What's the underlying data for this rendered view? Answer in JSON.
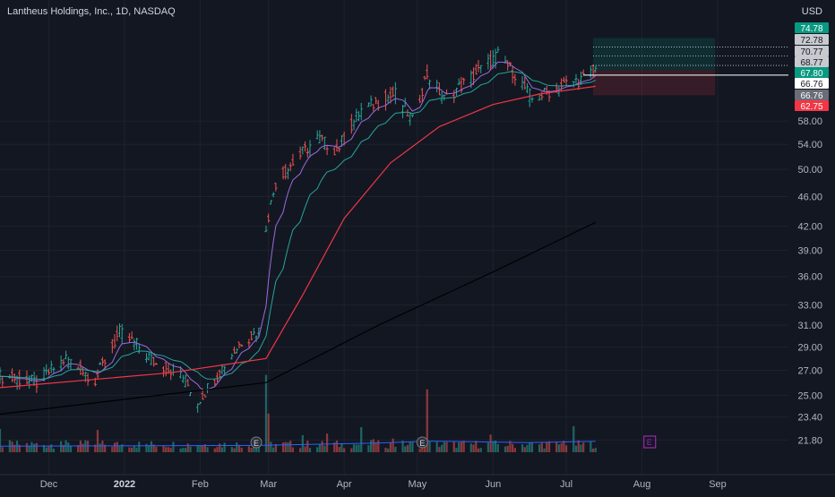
{
  "header": {
    "symbol_title": "Lantheus Holdings, Inc., 1D, NASDAQ",
    "currency": "USD"
  },
  "price_badges": [
    {
      "label": "74.78",
      "bg": "#089981",
      "fg": "#ffffff"
    },
    {
      "label": "72.78",
      "bg": "#c8cad0",
      "fg": "#131722"
    },
    {
      "label": "70.77",
      "bg": "#c8cad0",
      "fg": "#131722"
    },
    {
      "label": "68.77",
      "bg": "#c8cad0",
      "fg": "#131722"
    },
    {
      "label": "67.80",
      "bg": "#089981",
      "fg": "#ffffff"
    },
    {
      "label": "66.76",
      "bg": "#ffffff",
      "fg": "#131722"
    },
    {
      "label": "66.76",
      "bg": "#6a6d78",
      "fg": "#ffffff"
    },
    {
      "label": "62.75",
      "bg": "#f23645",
      "fg": "#ffffff"
    }
  ],
  "earnings_marker": "E",
  "colors": {
    "up": "#26a69a",
    "down": "#ef5350",
    "background": "#131722",
    "grid": "#1e222d",
    "ma_short": "#9c6ade",
    "ma_mid": "#26a69a",
    "ma_50": "#f23645",
    "ma_200": "#000000",
    "vol_ma": "#2962ff",
    "upcoming_earnings": "#9c27b0"
  },
  "chart_data": {
    "type": "candlestick",
    "y_scale": "log",
    "ylim": [
      21.0,
      80.0
    ],
    "y_ticks": [
      {
        "value": 58.0,
        "label": "58.00"
      },
      {
        "value": 54.0,
        "label": "54.00"
      },
      {
        "value": 50.0,
        "label": "50.00"
      },
      {
        "value": 46.0,
        "label": "46.00"
      },
      {
        "value": 42.0,
        "label": "42.00"
      },
      {
        "value": 39.0,
        "label": "39.00"
      },
      {
        "value": 36.0,
        "label": "36.00"
      },
      {
        "value": 33.0,
        "label": "33.00"
      },
      {
        "value": 31.0,
        "label": "31.00"
      },
      {
        "value": 29.0,
        "label": "29.00"
      },
      {
        "value": 27.0,
        "label": "27.00"
      },
      {
        "value": 25.0,
        "label": "25.00"
      },
      {
        "value": 23.4,
        "label": "23.40"
      },
      {
        "value": 21.8,
        "label": "21.80"
      }
    ],
    "x_ticks": [
      {
        "label": "Dec",
        "date": "2021-12-01"
      },
      {
        "label": "2022",
        "date": "2022-01-01"
      },
      {
        "label": "Feb",
        "date": "2022-02-01"
      },
      {
        "label": "Mar",
        "date": "2022-03-01"
      },
      {
        "label": "Apr",
        "date": "2022-04-01"
      },
      {
        "label": "May",
        "date": "2022-05-01"
      },
      {
        "label": "Jun",
        "date": "2022-06-01"
      },
      {
        "label": "Jul",
        "date": "2022-07-01"
      },
      {
        "label": "Aug",
        "date": "2022-08-01"
      },
      {
        "label": "Sep",
        "date": "2022-09-01"
      }
    ],
    "x_range": [
      "2021-11-11",
      "2022-09-30"
    ],
    "price_path": [
      {
        "date": "2021-11-11",
        "close": 26.5
      },
      {
        "date": "2021-11-26",
        "close": 26.0
      },
      {
        "date": "2021-12-08",
        "close": 28.0
      },
      {
        "date": "2021-12-20",
        "close": 26.2
      },
      {
        "date": "2021-12-30",
        "close": 30.3
      },
      {
        "date": "2022-01-06",
        "close": 29.2
      },
      {
        "date": "2022-01-14",
        "close": 27.5
      },
      {
        "date": "2022-01-24",
        "close": 26.8
      },
      {
        "date": "2022-01-31",
        "close": 24.5
      },
      {
        "date": "2022-02-10",
        "close": 27.2
      },
      {
        "date": "2022-02-18",
        "close": 29.5
      },
      {
        "date": "2022-02-25",
        "close": 30.5
      },
      {
        "date": "2022-02-28",
        "close": 42.0
      },
      {
        "date": "2022-03-04",
        "close": 48.0
      },
      {
        "date": "2022-03-11",
        "close": 51.0
      },
      {
        "date": "2022-03-21",
        "close": 55.0
      },
      {
        "date": "2022-03-29",
        "close": 53.0
      },
      {
        "date": "2022-04-08",
        "close": 60.0
      },
      {
        "date": "2022-04-22",
        "close": 63.0
      },
      {
        "date": "2022-04-29",
        "close": 58.0
      },
      {
        "date": "2022-05-05",
        "close": 67.0
      },
      {
        "date": "2022-05-12",
        "close": 62.0
      },
      {
        "date": "2022-05-20",
        "close": 65.0
      },
      {
        "date": "2022-05-27",
        "close": 68.0
      },
      {
        "date": "2022-06-03",
        "close": 71.0
      },
      {
        "date": "2022-06-10",
        "close": 67.0
      },
      {
        "date": "2022-06-17",
        "close": 62.0
      },
      {
        "date": "2022-06-24",
        "close": 63.5
      },
      {
        "date": "2022-07-01",
        "close": 65.0
      },
      {
        "date": "2022-07-08",
        "close": 66.0
      },
      {
        "date": "2022-07-13",
        "close": 67.8
      }
    ],
    "moving_averages": [
      {
        "color": "#f23645",
        "points": [
          {
            "date": "2021-11-11",
            "close": 25.6
          },
          {
            "date": "2022-01-20",
            "close": 26.8
          },
          {
            "date": "2022-02-28",
            "close": 28.0
          },
          {
            "date": "2022-03-15",
            "close": 34.0
          },
          {
            "date": "2022-04-01",
            "close": 43.0
          },
          {
            "date": "2022-04-20",
            "close": 51.0
          },
          {
            "date": "2022-05-10",
            "close": 57.0
          },
          {
            "date": "2022-06-01",
            "close": 61.0
          },
          {
            "date": "2022-06-20",
            "close": 63.0
          },
          {
            "date": "2022-07-13",
            "close": 64.5
          }
        ]
      },
      {
        "color": "#000000",
        "points": [
          {
            "date": "2021-11-11",
            "close": 23.6
          },
          {
            "date": "2022-02-28",
            "close": 26.0
          },
          {
            "date": "2022-04-15",
            "close": 31.0
          },
          {
            "date": "2022-06-01",
            "close": 36.5
          },
          {
            "date": "2022-07-13",
            "close": 42.5
          }
        ]
      }
    ],
    "volume_ma": [
      {
        "date": "2021-11-11",
        "value": 0.25
      },
      {
        "date": "2022-02-25",
        "value": 0.28
      },
      {
        "date": "2022-04-15",
        "value": 0.38
      },
      {
        "date": "2022-05-05",
        "value": 0.46
      },
      {
        "date": "2022-06-15",
        "value": 0.4
      },
      {
        "date": "2022-07-13",
        "value": 0.45
      }
    ],
    "earnings_dates": [
      "2022-02-24",
      "2022-05-03"
    ],
    "upcoming_earnings_date": "2022-08-04",
    "position": {
      "entry": 67.8,
      "target": 74.78,
      "stop": 62.75,
      "start": "2022-07-12",
      "end": "2022-08-31",
      "levels": [
        72.78,
        70.77,
        68.77,
        66.76
      ]
    }
  }
}
